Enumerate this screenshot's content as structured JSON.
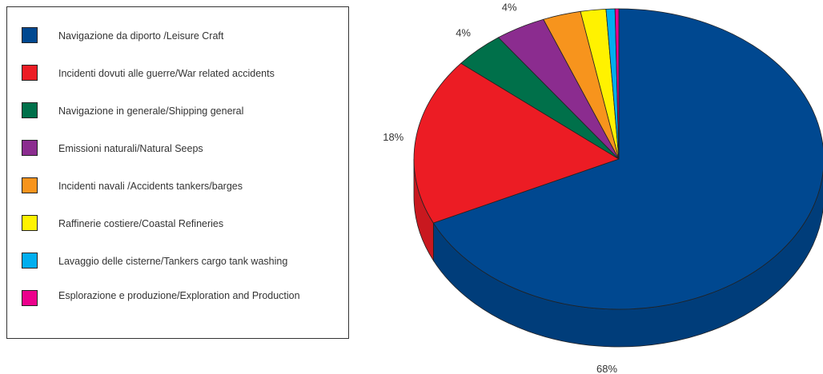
{
  "chart_data": {
    "type": "pie",
    "slices": [
      {
        "label": "Navigazione da diporto /Leisure Craft",
        "value": 68,
        "value_label": "68%",
        "color": "#004890"
      },
      {
        "label": "Incidenti dovuti alle guerre/War related accidents",
        "value": 18,
        "value_label": "18%",
        "color": "#ec1c24"
      },
      {
        "label": "Navigazione in generale/Shipping general",
        "value": 4,
        "value_label": "4%",
        "color": "#00704a"
      },
      {
        "label": "Emissioni naturali/Natural Seeps",
        "value": 4,
        "value_label": "4%",
        "color": "#8b2c8f"
      },
      {
        "label": "Incidenti navali /Accidents tankers/barges",
        "value": 3,
        "value_label": "3%",
        "color": "#f7941d"
      },
      {
        "label": "Raffinerie costiere/Coastal Refineries",
        "value": 2,
        "value_label": "2%",
        "color": "#fff200"
      },
      {
        "label": "Lavaggio delle cisterne/Tankers cargo tank washing",
        "value": 0.7,
        "value_label": "",
        "color": "#00aeef"
      },
      {
        "label": "Esplorazione e produzione/Exploration and Production",
        "value": 0.3,
        "value_label": "0,3%",
        "color": "#ec008c"
      }
    ],
    "legend_position": "left"
  }
}
